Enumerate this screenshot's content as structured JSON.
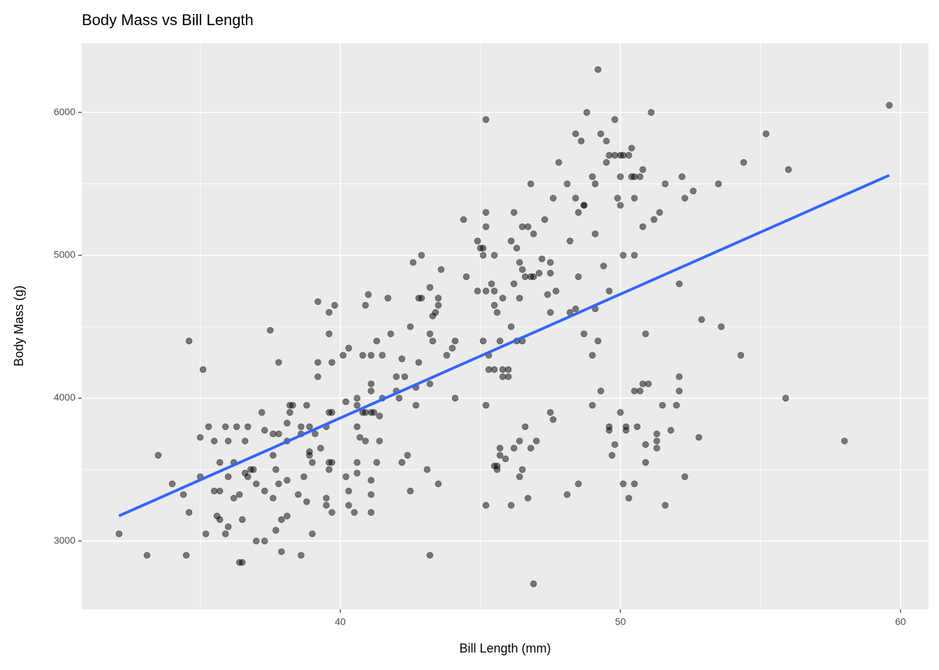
{
  "chart_data": {
    "type": "scatter",
    "title": "Body Mass vs Bill Length",
    "x_label": "Bill Length (mm)",
    "y_label": "Body Mass (g)",
    "xlim": [
      30.77,
      61.0
    ],
    "ylim": [
      2522,
      6484
    ],
    "xticks": [
      40,
      50,
      60
    ],
    "yticks": [
      3000,
      4000,
      5000,
      6000
    ],
    "xminor": [
      35,
      45,
      55
    ],
    "yminor": [
      3500,
      4500,
      5500
    ],
    "grid": true,
    "color": "rgba(0,0,0,0.5)",
    "x": [
      32.1,
      33.1,
      33.5,
      34.0,
      34.4,
      34.5,
      34.6,
      34.6,
      35.0,
      35.0,
      35.1,
      35.2,
      35.3,
      35.5,
      35.5,
      35.6,
      35.7,
      35.7,
      35.7,
      35.9,
      35.9,
      36.0,
      36.0,
      36.0,
      36.2,
      36.2,
      36.3,
      36.4,
      36.5,
      36.4,
      36.5,
      36.6,
      36.6,
      36.7,
      36.7,
      36.8,
      36.9,
      37.0,
      37.0,
      37.2,
      37.3,
      37.3,
      37.3,
      37.5,
      37.6,
      37.6,
      37.6,
      37.7,
      37.7,
      37.8,
      37.8,
      37.8,
      37.9,
      37.9,
      38.1,
      38.1,
      38.1,
      38.1,
      38.2,
      38.2,
      38.3,
      38.5,
      38.6,
      38.6,
      38.6,
      38.7,
      38.8,
      38.8,
      38.9,
      38.9,
      38.9,
      39.0,
      39.0,
      39.1,
      39.2,
      39.2,
      39.2,
      39.3,
      39.5,
      39.5,
      39.5,
      39.6,
      39.6,
      39.6,
      39.6,
      39.6,
      39.7,
      39.7,
      39.7,
      39.7,
      39.8,
      40.1,
      40.2,
      40.2,
      40.3,
      40.3,
      40.3,
      40.5,
      40.6,
      40.6,
      40.6,
      40.6,
      40.6,
      40.7,
      40.8,
      40.8,
      40.9,
      40.9,
      40.9,
      41.0,
      41.1,
      41.1,
      41.1,
      41.1,
      41.1,
      41.1,
      41.1,
      41.2,
      41.3,
      41.3,
      41.4,
      41.4,
      41.5,
      41.5,
      41.7,
      41.8,
      42.0,
      42.0,
      42.1,
      42.2,
      42.2,
      42.3,
      42.4,
      42.5,
      42.5,
      42.6,
      42.7,
      42.7,
      42.8,
      42.8,
      42.9,
      42.9,
      43.1,
      43.2,
      43.2,
      43.2,
      43.2,
      43.3,
      43.3,
      43.4,
      43.5,
      43.5,
      43.5,
      43.6,
      43.8,
      44.0,
      44.1,
      44.1,
      44.4,
      44.5,
      44.9,
      44.9,
      45.0,
      45.1,
      45.1,
      45.1,
      45.2,
      45.2,
      45.2,
      45.2,
      45.2,
      45.2,
      45.3,
      45.3,
      45.4,
      45.5,
      45.5,
      45.5,
      45.5,
      45.5,
      45.6,
      45.6,
      45.6,
      45.7,
      45.7,
      45.7,
      45.8,
      45.8,
      45.8,
      45.9,
      46.0,
      46.0,
      46.1,
      46.1,
      46.1,
      46.2,
      46.2,
      46.2,
      46.3,
      46.3,
      46.4,
      46.4,
      46.4,
      46.4,
      46.5,
      46.5,
      46.5,
      46.5,
      46.6,
      46.6,
      46.7,
      46.7,
      46.8,
      46.8,
      46.8,
      46.9,
      46.9,
      46.9,
      47.0,
      47.1,
      47.2,
      47.3,
      47.4,
      47.5,
      47.5,
      47.5,
      47.5,
      47.6,
      47.6,
      47.7,
      47.8,
      48.1,
      48.1,
      48.2,
      48.2,
      48.4,
      48.4,
      48.4,
      48.5,
      48.5,
      48.5,
      48.6,
      48.7,
      48.7,
      48.7,
      48.8,
      49.0,
      49.0,
      49.0,
      49.1,
      49.1,
      49.1,
      49.2,
      49.2,
      49.3,
      49.3,
      49.4,
      49.5,
      49.5,
      49.6,
      49.6,
      49.6,
      49.6,
      49.7,
      49.8,
      49.8,
      49.8,
      49.9,
      50.0,
      50.0,
      50.0,
      50.0,
      50.1,
      50.1,
      50.1,
      50.2,
      50.2,
      50.3,
      50.3,
      50.4,
      50.4,
      50.5,
      50.5,
      50.5,
      50.5,
      50.5,
      50.6,
      50.7,
      50.7,
      50.8,
      50.8,
      50.8,
      50.9,
      50.9,
      50.9,
      51.0,
      51.1,
      51.2,
      51.3,
      51.3,
      51.3,
      51.4,
      51.5,
      51.6,
      51.6,
      51.8,
      52.0,
      52.1,
      52.1,
      52.1,
      52.2,
      52.3,
      52.3,
      52.6,
      52.8,
      52.9,
      53.5,
      53.6,
      54.3,
      54.4,
      55.2,
      55.9,
      56.0,
      58.0,
      59.6
    ],
    "values": [
      3050,
      2900,
      3600,
      3400,
      3325,
      2900,
      3200,
      4400,
      3725,
      3450,
      4200,
      3050,
      3800,
      3700,
      3350,
      3175,
      3550,
      3350,
      3150,
      3800,
      3050,
      3700,
      3450,
      3100,
      3550,
      3300,
      3800,
      2850,
      2850,
      3325,
      3150,
      3700,
      3475,
      3450,
      3800,
      3500,
      3500,
      3000,
      3400,
      3900,
      3775,
      3350,
      3000,
      4475,
      3300,
      3600,
      3750,
      3075,
      3500,
      4250,
      3750,
      3400,
      3150,
      2925,
      3825,
      3700,
      3425,
      3175,
      3900,
      3950,
      3950,
      3325,
      3800,
      2900,
      3750,
      3450,
      3950,
      3275,
      3600,
      3625,
      3800,
      3050,
      3550,
      3750,
      4675,
      4250,
      4150,
      3650,
      3300,
      3250,
      3800,
      3900,
      4450,
      4600,
      3550,
      3500,
      3900,
      3550,
      3200,
      4250,
      4650,
      4300,
      3975,
      3450,
      4350,
      3350,
      3250,
      3200,
      4000,
      3950,
      3800,
      3550,
      3475,
      3725,
      4300,
      3900,
      4650,
      3900,
      3700,
      4725,
      4100,
      4050,
      3900,
      4300,
      3425,
      3325,
      3200,
      3900,
      3550,
      4400,
      3875,
      3700,
      4000,
      4300,
      4700,
      4450,
      4050,
      4150,
      4000,
      4275,
      3550,
      4150,
      3600,
      4500,
      3350,
      4950,
      3950,
      4075,
      4700,
      4250,
      4700,
      5000,
      3500,
      4775,
      4450,
      4100,
      2900,
      4400,
      4575,
      4600,
      4650,
      4700,
      3400,
      4900,
      4300,
      4350,
      4400,
      4000,
      5250,
      4850,
      5100,
      4750,
      5050,
      4400,
      5050,
      5000,
      5950,
      5300,
      5200,
      4750,
      3950,
      3250,
      4300,
      4200,
      4800,
      4750,
      4650,
      3525,
      4200,
      5000,
      4600,
      3500,
      3525,
      4400,
      3650,
      3600,
      4200,
      4150,
      4700,
      3575,
      4200,
      4150,
      5100,
      4500,
      3250,
      5300,
      4800,
      3650,
      5050,
      4400,
      4700,
      4950,
      3450,
      3700,
      5200,
      4900,
      4400,
      3500,
      4850,
      3800,
      5200,
      3300,
      4850,
      5500,
      3650,
      5150,
      4850,
      2700,
      3700,
      4875,
      4975,
      5250,
      4725,
      3900,
      4600,
      4950,
      4875,
      3850,
      5400,
      4750,
      5650,
      3325,
      5500,
      5100,
      4600,
      4625,
      5850,
      5400,
      4850,
      5300,
      3400,
      5800,
      5350,
      5350,
      4450,
      6000,
      4300,
      3950,
      5550,
      5500,
      5150,
      4625,
      4400,
      6300,
      4050,
      5850,
      4925,
      5800,
      5650,
      3800,
      5700,
      4750,
      3775,
      3600,
      5950,
      5700,
      3675,
      5400,
      5700,
      3900,
      5550,
      5350,
      5700,
      5000,
      3400,
      3800,
      3775,
      5700,
      3300,
      5550,
      5750,
      4050,
      5550,
      5000,
      3400,
      5400,
      3800,
      4050,
      5550,
      4100,
      5600,
      5200,
      4450,
      3675,
      3550,
      4100,
      6000,
      5250,
      3700,
      3750,
      3650,
      5300,
      3950,
      3250,
      5500,
      3775,
      3950,
      4800,
      4150,
      4050,
      5550,
      3450,
      5400,
      5450,
      3725,
      4550,
      5500,
      4500,
      4300,
      5650,
      5850,
      4000,
      5600,
      3700,
      6050
    ],
    "trend": {
      "x": [
        32.1,
        59.6
      ],
      "values": [
        3176,
        5560
      ],
      "color": "#3366ff"
    }
  }
}
